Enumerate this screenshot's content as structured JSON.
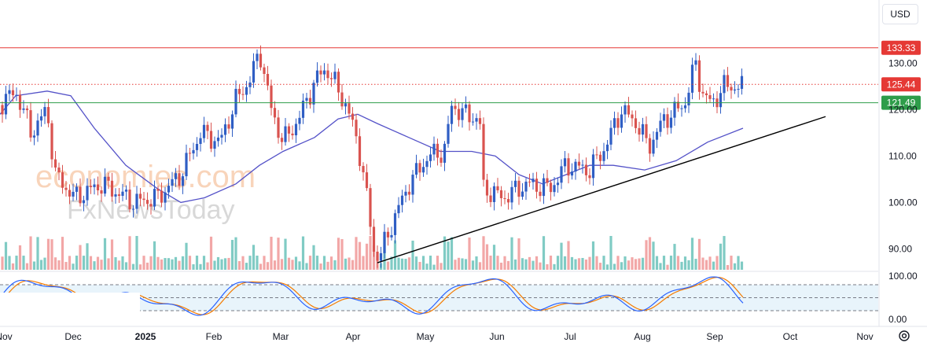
{
  "currency": "USD",
  "watermark": {
    "line1": "economies.com",
    "line2": "FxNewsToday"
  },
  "colors": {
    "up": "#2f5ec4",
    "down": "#d9534f",
    "vol_up": "#80cbc4",
    "vol_down": "#f2a7a7",
    "ma": "#5452c8",
    "resistance": "#e53935",
    "support": "#2e9d4a",
    "trend": "#000000",
    "k_line": "#2962ff",
    "d_line": "#f57c00",
    "osc_band": "#e8f4fb"
  },
  "chart_data": {
    "type": "candlestick",
    "y_ticks": [
      "130.00",
      "120.00",
      "110.00",
      "100.00",
      "90.00"
    ],
    "y_tick_values": [
      130,
      120,
      110,
      100,
      90
    ],
    "ylim": [
      85,
      136
    ],
    "x_tick_labels": [
      "Nov",
      "Dec",
      "2025",
      "Feb",
      "Mar",
      "Apr",
      "May",
      "Jun",
      "Jul",
      "Aug",
      "Sep",
      "Oct",
      "Nov"
    ],
    "levels": [
      {
        "value": 133.33,
        "label": "133.33",
        "style": "solid",
        "color": "#e53935"
      },
      {
        "value": 125.44,
        "label": "125.44",
        "style": "dotted",
        "color": "#e53935"
      },
      {
        "value": 121.49,
        "label": "121.49",
        "style": "solid",
        "color": "#2e9d4a"
      }
    ],
    "trendline": {
      "from": [
        "Apr",
        87
      ],
      "to": [
        "Sep",
        118.5
      ]
    },
    "moving_average": [
      [
        "Nov",
        119
      ],
      [
        "Nov",
        124
      ],
      [
        "Dec",
        122
      ],
      [
        "Dec",
        114
      ],
      [
        "Dec",
        106
      ],
      [
        "2025",
        101
      ],
      [
        "2025",
        100
      ],
      [
        "Feb",
        103
      ],
      [
        "Feb",
        108
      ],
      [
        "Mar",
        111
      ],
      [
        "Mar",
        114
      ],
      [
        "Apr",
        118
      ],
      [
        "Apr",
        119
      ],
      [
        "May",
        116
      ],
      [
        "May",
        113
      ],
      [
        "Jun",
        111
      ],
      [
        "Jun",
        110
      ],
      [
        "Jul",
        107
      ],
      [
        "Jul",
        106
      ],
      [
        "Aug",
        108
      ],
      [
        "Aug",
        107
      ],
      [
        "Sep",
        112
      ],
      [
        "Sep",
        116
      ]
    ],
    "stochastic": {
      "ticks": [
        "100.00",
        "0.00"
      ],
      "upper_band": 80,
      "lower_band": 20
    }
  }
}
